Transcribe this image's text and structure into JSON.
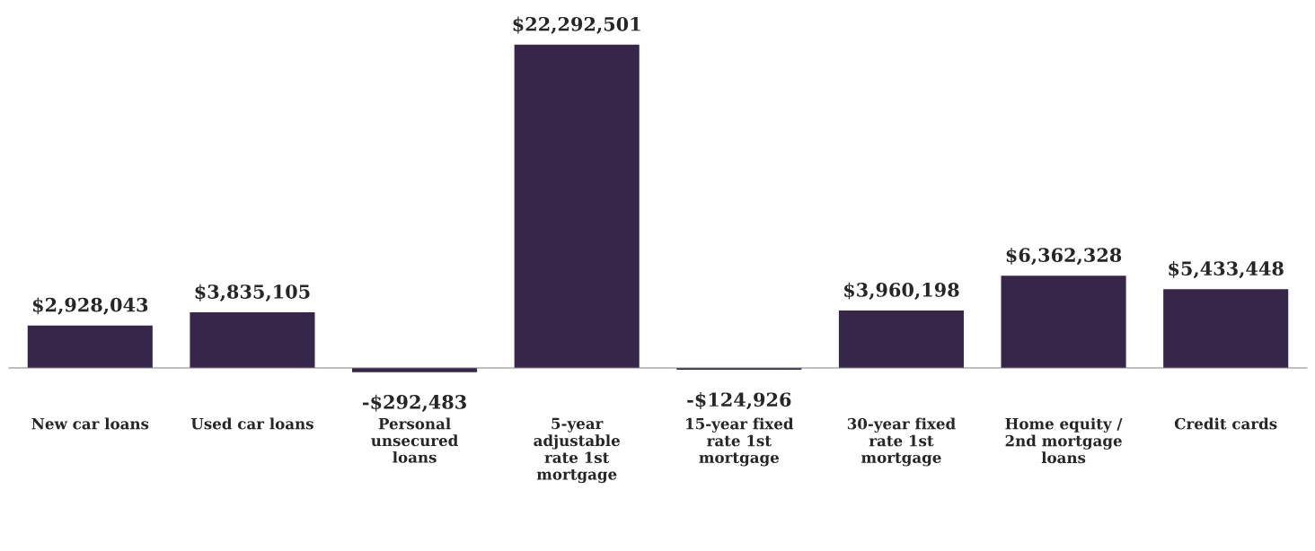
{
  "chart_data": {
    "type": "bar",
    "categories": [
      "New car loans",
      "Used car loans",
      "Personal\nunsecured\nloans",
      "5-year\nadjustable\nrate 1st\nmortgage",
      "15-year fixed\nrate 1st\nmortgage",
      "30-year fixed\nrate 1st\nmortgage",
      "Home equity /\n2nd mortgage\nloans",
      "Credit cards"
    ],
    "values": [
      2928043,
      3835105,
      -292483,
      22292501,
      -124926,
      3960198,
      6362328,
      5433448
    ],
    "value_labels": [
      "$2,928,043",
      "$3,835,105",
      "-$292,483",
      "$22,292,501",
      "-$124,926",
      "$3,960,198",
      "$6,362,328",
      "$5,433,448"
    ],
    "color": "#35264a",
    "grid": false,
    "legend": false
  }
}
